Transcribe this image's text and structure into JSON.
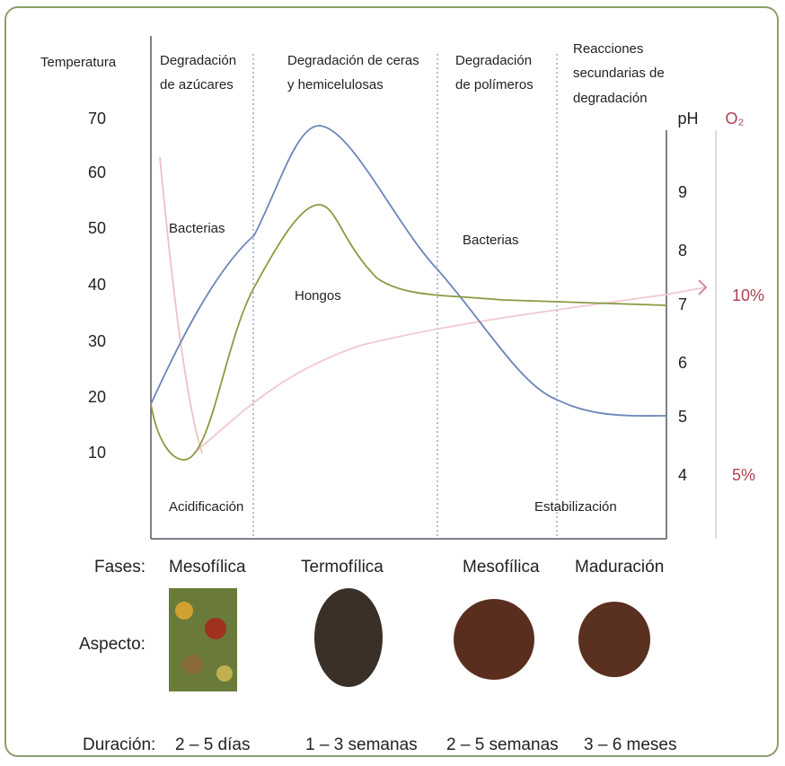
{
  "left_axis": {
    "label": "Temperatura",
    "ticks": [
      "70",
      "60",
      "50",
      "40",
      "30",
      "20",
      "10"
    ]
  },
  "right_axes": {
    "ph_label": "pH",
    "ph_ticks": [
      "9",
      "8",
      "7",
      "6",
      "5",
      "4"
    ],
    "o2_label": "O₂",
    "o2_ticks": [
      "10%",
      "5%"
    ]
  },
  "stages": [
    [
      "Degradación",
      "de azúcares"
    ],
    [
      "Degradación de ceras",
      "y hemicelulosas"
    ],
    [
      "Degradación",
      "de polímeros"
    ],
    [
      "Reacciones",
      "secundarias de",
      "degradación"
    ]
  ],
  "annotations": [
    "Bacterias",
    "Hongos",
    "Bacterias",
    "Acidificación",
    "Estabilización"
  ],
  "rows": {
    "phases_label": "Fases:",
    "phases": [
      "Mesofílica",
      "Termofílica",
      "Mesofílica",
      "Maduración"
    ],
    "aspect_label": "Aspecto:",
    "duration_label": "Duración:",
    "durations": [
      "2 – 5 días",
      "1 – 3 semanas",
      "2 – 5 semanas",
      "3 – 6 meses"
    ]
  }
}
